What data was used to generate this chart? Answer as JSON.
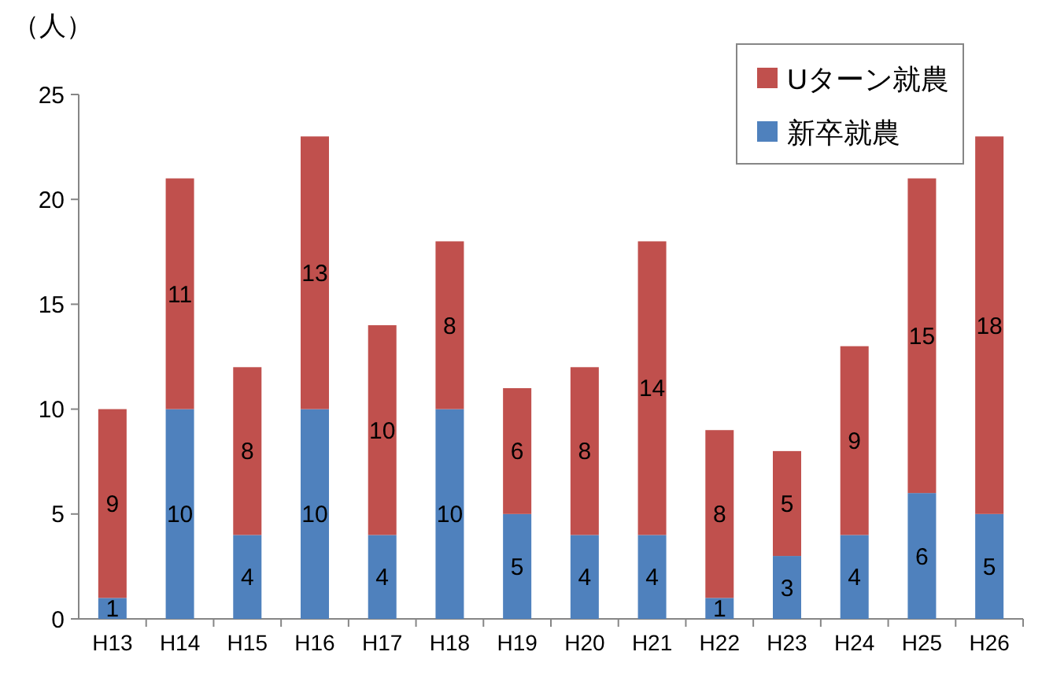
{
  "chart_data": {
    "type": "bar",
    "stacked": true,
    "ylabel": "（人）",
    "categories": [
      "H13",
      "H14",
      "H15",
      "H16",
      "H17",
      "H18",
      "H19",
      "H20",
      "H21",
      "H22",
      "H23",
      "H24",
      "H25",
      "H26"
    ],
    "series": [
      {
        "name": "新卒就農",
        "color": "#4f81bd",
        "values": [
          1,
          10,
          4,
          10,
          4,
          10,
          5,
          4,
          4,
          1,
          3,
          4,
          6,
          5
        ]
      },
      {
        "name": "Uターン就農",
        "color": "#c0504d",
        "values": [
          9,
          11,
          8,
          13,
          10,
          8,
          6,
          8,
          14,
          8,
          5,
          9,
          15,
          18
        ]
      }
    ],
    "ylim": [
      0,
      25
    ],
    "yticks": [
      0,
      5,
      10,
      15,
      20,
      25
    ],
    "grid": false,
    "legend": "top right",
    "data_labels": true
  }
}
